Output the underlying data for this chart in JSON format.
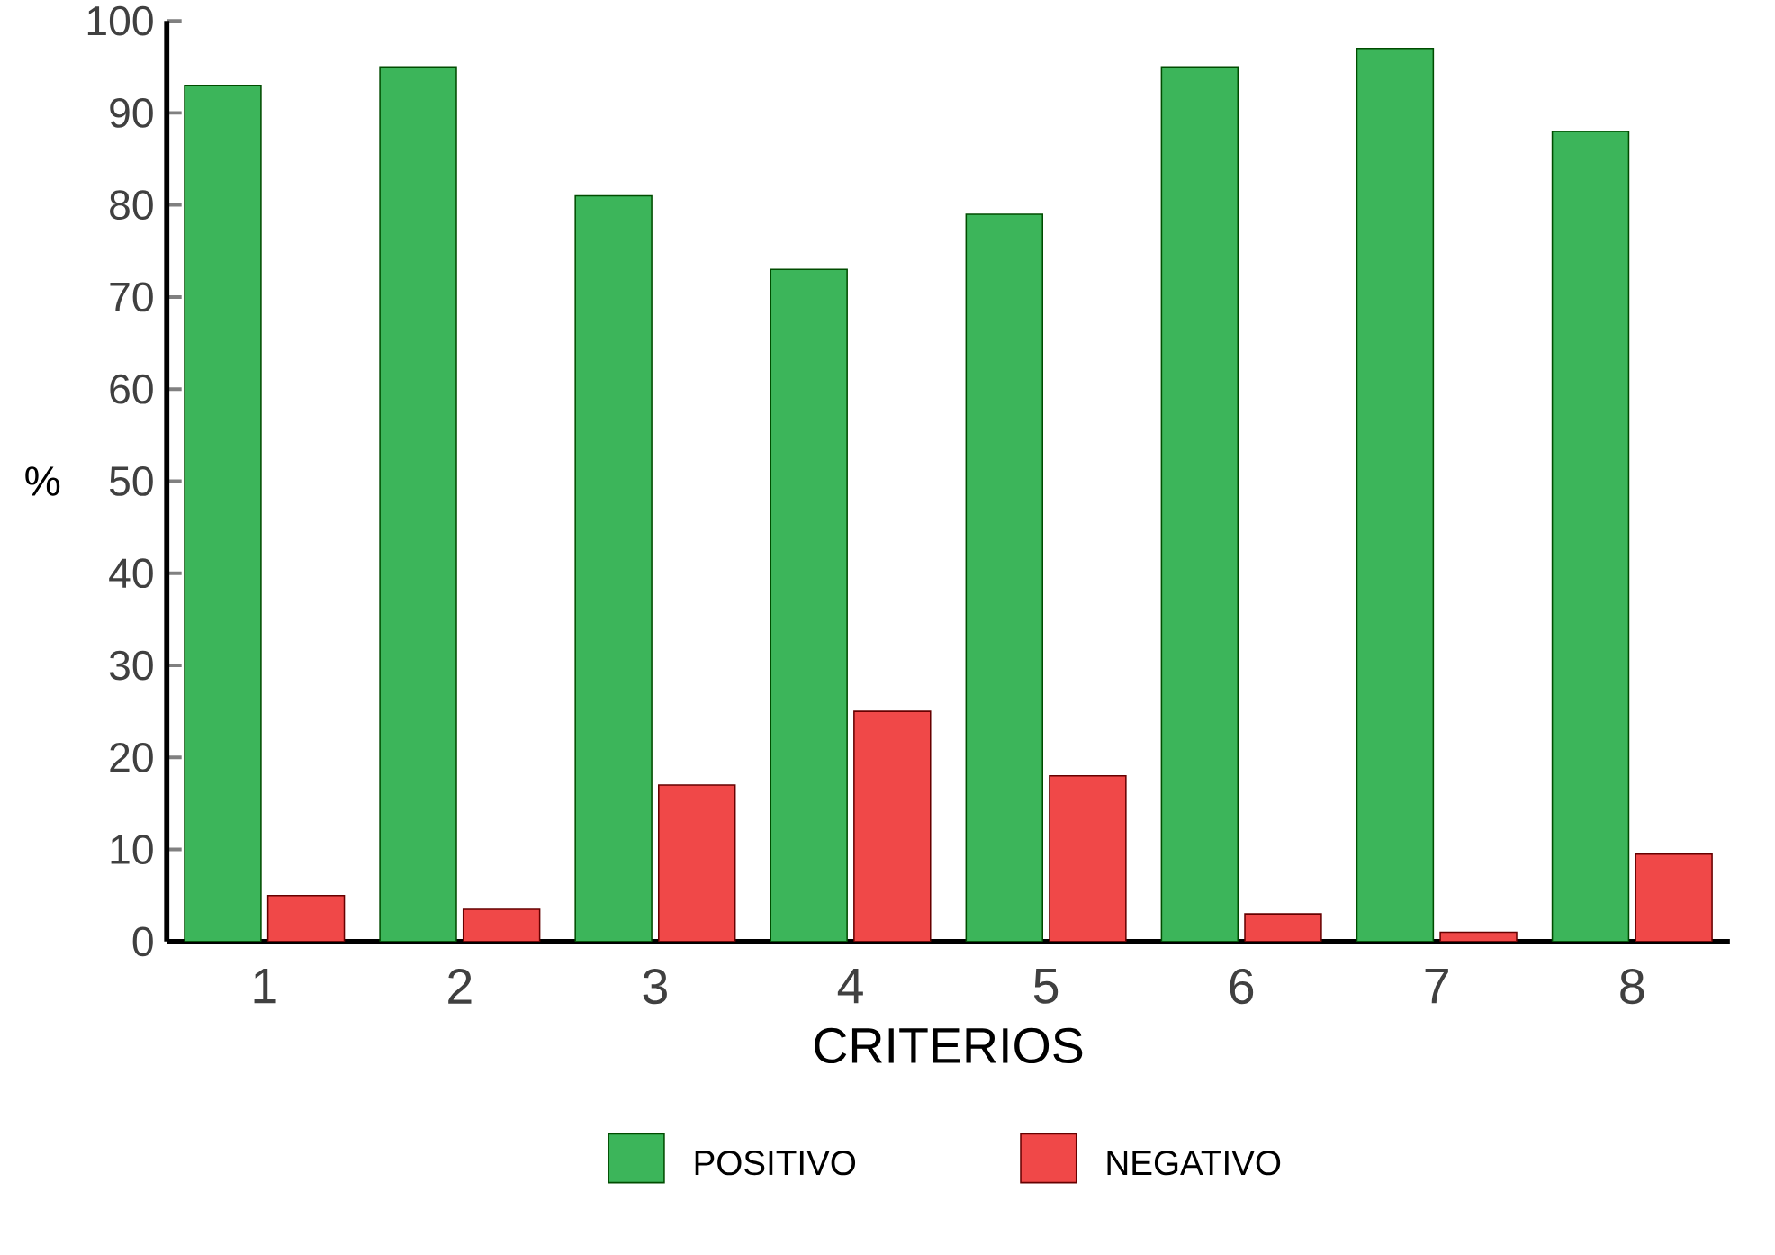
{
  "chart_data": {
    "type": "bar",
    "xlabel": "CRITERIOS",
    "ylabel": "%",
    "categories": [
      "1",
      "2",
      "3",
      "4",
      "5",
      "6",
      "7",
      "8"
    ],
    "series": [
      {
        "name": "POSITIVO",
        "color": "#3cb55a",
        "values": [
          93,
          95,
          81,
          73,
          79,
          95,
          97,
          88
        ]
      },
      {
        "name": "NEGATIVO",
        "color": "#f04848",
        "values": [
          5,
          3.5,
          17,
          25,
          18,
          3,
          1,
          9.5
        ]
      }
    ],
    "ylim": [
      0,
      100
    ],
    "yticks": [
      0,
      10,
      20,
      30,
      40,
      50,
      60,
      70,
      80,
      90,
      100
    ],
    "grid": false,
    "legend": "bottom"
  }
}
